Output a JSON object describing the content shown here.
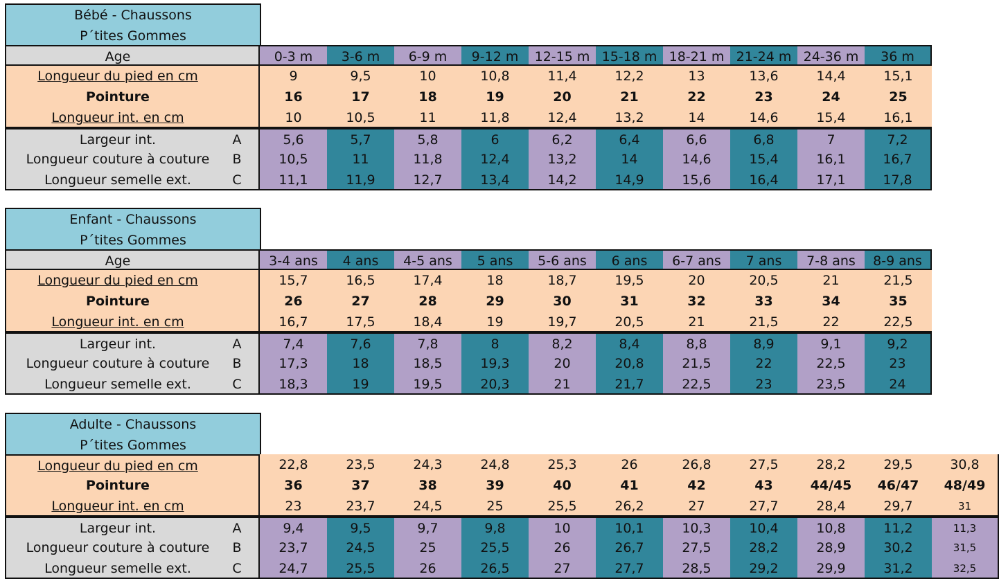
{
  "sections": [
    {
      "title_line1": "Bébé - Chaussons",
      "title_line2": "P´tites Gommes",
      "age_label": "Age",
      "ages": [
        "0-3 m",
        "3-6 m",
        "6-9 m",
        "9-12 m",
        "12-15 m",
        "15-18 m",
        "18-21 m",
        "21-24 m",
        "24-36 m",
        "36 m"
      ],
      "foot_label": "Longueur du pied en cm",
      "foot": [
        "9",
        "9,5",
        "10",
        "10,8",
        "11,4",
        "12,2",
        "13",
        "13,6",
        "14,4",
        "15,1"
      ],
      "size_label": "Pointure",
      "size": [
        "16",
        "17",
        "18",
        "19",
        "20",
        "21",
        "22",
        "23",
        "24",
        "25"
      ],
      "inner_label": "Longueur int. en cm",
      "inner": [
        "10",
        "10,5",
        "11",
        "11,8",
        "12,4",
        "13,2",
        "14",
        "14,6",
        "15,4",
        "16,1"
      ],
      "width_label": "Largeur int.",
      "width_code": "A",
      "width": [
        "5,6",
        "5,7",
        "5,8",
        "6",
        "6,2",
        "6,4",
        "6,6",
        "6,8",
        "7",
        "7,2"
      ],
      "seam_label": "Longueur couture à couture",
      "seam_code": "B",
      "seam": [
        "10,5",
        "11",
        "11,8",
        "12,4",
        "13,2",
        "14",
        "14,6",
        "15,4",
        "16,1",
        "16,7"
      ],
      "sole_label": "Longueur semelle ext.",
      "sole_code": "C",
      "sole": [
        "11,1",
        "11,9",
        "12,7",
        "13,4",
        "14,2",
        "14,9",
        "15,6",
        "16,4",
        "17,1",
        "17,8"
      ]
    },
    {
      "title_line1": "Enfant - Chaussons",
      "title_line2": "P´tites Gommes",
      "age_label": "Age",
      "ages": [
        "3-4 ans",
        "4 ans",
        "4-5 ans",
        "5 ans",
        "5-6 ans",
        "6 ans",
        "6-7 ans",
        "7 ans",
        "7-8 ans",
        "8-9 ans"
      ],
      "foot_label": "Longueur du pied en cm",
      "foot": [
        "15,7",
        "16,5",
        "17,4",
        "18",
        "18,7",
        "19,5",
        "20",
        "20,5",
        "21",
        "21,5"
      ],
      "size_label": "Pointure",
      "size": [
        "26",
        "27",
        "28",
        "29",
        "30",
        "31",
        "32",
        "33",
        "34",
        "35"
      ],
      "inner_label": "Longueur int. en cm",
      "inner": [
        "16,7",
        "17,5",
        "18,4",
        "19",
        "19,7",
        "20,5",
        "21",
        "21,5",
        "22",
        "22,5"
      ],
      "width_label": "Largeur int.",
      "width_code": "A",
      "width": [
        "7,4",
        "7,6",
        "7,8",
        "8",
        "8,2",
        "8,4",
        "8,8",
        "8,9",
        "9,1",
        "9,2"
      ],
      "seam_label": "Longueur couture à couture",
      "seam_code": "B",
      "seam": [
        "17,3",
        "18",
        "18,5",
        "19,3",
        "20",
        "20,8",
        "21,5",
        "22",
        "22,5",
        "23"
      ],
      "sole_label": "Longueur semelle ext.",
      "sole_code": "C",
      "sole": [
        "18,3",
        "19",
        "19,5",
        "20,3",
        "21",
        "21,7",
        "22,5",
        "23",
        "23,5",
        "24"
      ]
    },
    {
      "title_line1": "Adulte - Chaussons",
      "title_line2": "P´tites Gommes",
      "foot_label": "Longueur du pied en cm",
      "foot": [
        "22,8",
        "23,5",
        "24,3",
        "24,8",
        "25,3",
        "26",
        "26,8",
        "27,5",
        "28,2",
        "29,5",
        "30,8"
      ],
      "size_label": "Pointure",
      "size": [
        "36",
        "37",
        "38",
        "39",
        "40",
        "41",
        "42",
        "43",
        "44/45",
        "46/47",
        "48/49"
      ],
      "inner_label": "Longueur int. en cm",
      "inner": [
        "23",
        "23,7",
        "24,5",
        "25",
        "25,5",
        "26,2",
        "27",
        "27,7",
        "28,4",
        "29,7",
        "31"
      ],
      "width_label": "Largeur int.",
      "width_code": "A",
      "width": [
        "9,4",
        "9,5",
        "9,7",
        "9,8",
        "10",
        "10,1",
        "10,3",
        "10,4",
        "10,8",
        "11,2",
        "11,3"
      ],
      "seam_label": "Longueur couture à couture",
      "seam_code": "B",
      "seam": [
        "23,7",
        "24,5",
        "25",
        "25,5",
        "26",
        "26,7",
        "27,5",
        "28,2",
        "28,9",
        "30,2",
        "31,5"
      ],
      "sole_label": "Longueur semelle ext.",
      "sole_code": "C",
      "sole": [
        "24,7",
        "25,5",
        "26",
        "26,5",
        "27",
        "27,7",
        "28,5",
        "29,2",
        "29,9",
        "31,2",
        "32,5"
      ]
    }
  ],
  "colors": {
    "title": "#92cddc",
    "peach": "#fcd5b4",
    "grey": "#d9d9d9",
    "purple": "#b1a0c7",
    "teal": "#31869b"
  }
}
